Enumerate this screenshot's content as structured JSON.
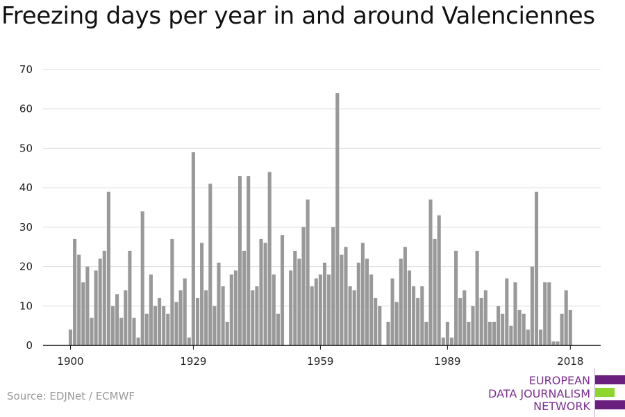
{
  "title": "Freezing days per year in and around Valenciennes",
  "source": "Source: EDJNet / ECMWF",
  "logo": {
    "lines": [
      "EUROPEAN",
      "DATA JOURNALISM",
      "NETWORK"
    ],
    "text_color": "#7b2d91",
    "bar_colors": [
      "#6a1f7f",
      "#8dd62e",
      "#6a1f7f"
    ]
  },
  "colors": {
    "bar": "#999999",
    "grid": "#dddddd",
    "axis": "#111111"
  },
  "chart_data": {
    "type": "bar",
    "title": "Freezing days per year in and around Valenciennes",
    "xlabel": "",
    "ylabel": "",
    "x_ticks": [
      1900,
      1929,
      1959,
      1989,
      2018
    ],
    "y_ticks": [
      0,
      10,
      20,
      30,
      40,
      50,
      60,
      70
    ],
    "ylim": [
      0,
      70
    ],
    "grid": true,
    "x": [
      1900,
      1901,
      1902,
      1903,
      1904,
      1905,
      1906,
      1907,
      1908,
      1909,
      1910,
      1911,
      1912,
      1913,
      1914,
      1915,
      1916,
      1917,
      1918,
      1919,
      1920,
      1921,
      1922,
      1923,
      1924,
      1925,
      1926,
      1927,
      1928,
      1929,
      1930,
      1931,
      1932,
      1933,
      1934,
      1935,
      1936,
      1937,
      1938,
      1939,
      1940,
      1941,
      1942,
      1943,
      1944,
      1945,
      1946,
      1947,
      1948,
      1949,
      1950,
      1951,
      1952,
      1953,
      1954,
      1955,
      1956,
      1957,
      1958,
      1959,
      1960,
      1961,
      1962,
      1963,
      1964,
      1965,
      1966,
      1967,
      1968,
      1969,
      1970,
      1971,
      1972,
      1973,
      1974,
      1975,
      1976,
      1977,
      1978,
      1979,
      1980,
      1981,
      1982,
      1983,
      1984,
      1985,
      1986,
      1987,
      1988,
      1989,
      1990,
      1991,
      1992,
      1993,
      1994,
      1995,
      1996,
      1997,
      1998,
      1999,
      2000,
      2001,
      2002,
      2003,
      2004,
      2005,
      2006,
      2007,
      2008,
      2009,
      2010,
      2011,
      2012,
      2013,
      2014,
      2015,
      2016,
      2017,
      2018
    ],
    "values": [
      4,
      27,
      23,
      16,
      20,
      7,
      19,
      22,
      24,
      39,
      10,
      13,
      7,
      14,
      24,
      7,
      2,
      34,
      8,
      18,
      10,
      12,
      10,
      8,
      27,
      11,
      14,
      17,
      2,
      49,
      12,
      26,
      14,
      41,
      10,
      21,
      15,
      6,
      18,
      19,
      43,
      24,
      43,
      14,
      15,
      27,
      26,
      44,
      18,
      8,
      28,
      0,
      19,
      24,
      22,
      30,
      37,
      15,
      17,
      18,
      21,
      18,
      30,
      64,
      23,
      25,
      15,
      14,
      21,
      26,
      22,
      18,
      12,
      10,
      0,
      6,
      17,
      11,
      22,
      25,
      19,
      15,
      12,
      15,
      6,
      37,
      27,
      33,
      2,
      6,
      2,
      24,
      12,
      14,
      6,
      10,
      24,
      12,
      14,
      6,
      6,
      10,
      8,
      17,
      5,
      16,
      9,
      8,
      4,
      20,
      39,
      4,
      16,
      16,
      1,
      1,
      8,
      14,
      9
    ]
  }
}
